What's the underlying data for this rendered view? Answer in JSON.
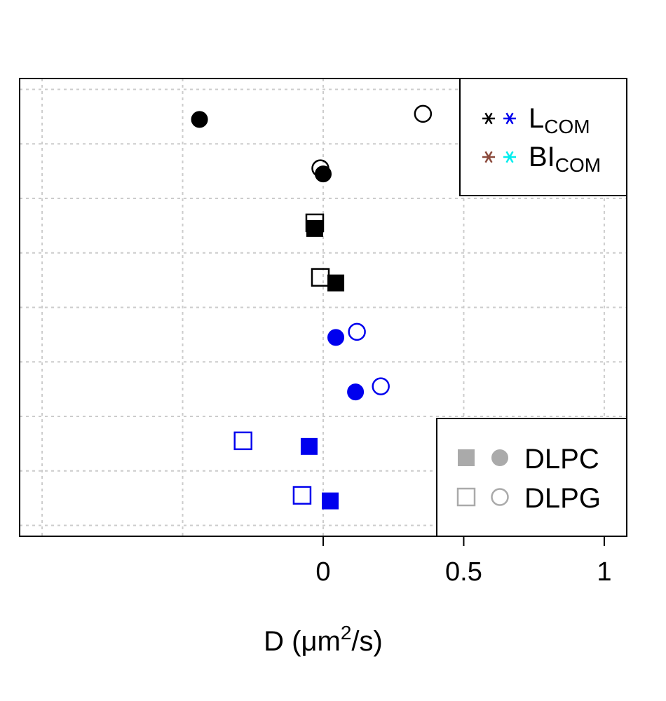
{
  "chart_data": {
    "type": "scatter",
    "title": "",
    "xlabel": {
      "prefix": "D (",
      "unit_base": "μm",
      "sup": "2",
      "suffix": "/s)"
    },
    "ylabel": "",
    "xlim": [
      -1.08,
      1.08
    ],
    "ylim": [
      0.3,
      8.7
    ],
    "x_ticks": [
      {
        "value": 0,
        "label": "0"
      },
      {
        "value": 0.5,
        "label": "0.5"
      },
      {
        "value": 1,
        "label": "1"
      }
    ],
    "grid": true,
    "x_grid_values": [
      -1,
      -0.5,
      0,
      0.5,
      1
    ],
    "y_grid_values": [
      0.5,
      1.5,
      2.5,
      3.5,
      4.5,
      5.5,
      6.5,
      7.5,
      8.5
    ],
    "colors": {
      "black": "#000000",
      "blue": "#0000ee",
      "brown": "#8b4a3c",
      "cyan": "#00eeee",
      "gray": "#aaaaaa"
    },
    "points": [
      {
        "row": 8,
        "x": -0.44,
        "shape": "circle",
        "filled": true,
        "color": "black"
      },
      {
        "row": 8,
        "x": 0.355,
        "shape": "circle",
        "filled": false,
        "color": "black"
      },
      {
        "row": 7,
        "x": -0.01,
        "shape": "circle",
        "filled": false,
        "color": "black"
      },
      {
        "row": 7,
        "x": 0.0,
        "shape": "circle",
        "filled": true,
        "color": "black"
      },
      {
        "row": 6,
        "x": -0.03,
        "shape": "square",
        "filled": false,
        "color": "black"
      },
      {
        "row": 6,
        "x": -0.03,
        "shape": "square",
        "filled": true,
        "color": "black"
      },
      {
        "row": 5,
        "x": -0.01,
        "shape": "square",
        "filled": false,
        "color": "black"
      },
      {
        "row": 5,
        "x": 0.045,
        "shape": "square",
        "filled": true,
        "color": "black"
      },
      {
        "row": 4,
        "x": 0.045,
        "shape": "circle",
        "filled": true,
        "color": "blue"
      },
      {
        "row": 4,
        "x": 0.12,
        "shape": "circle",
        "filled": false,
        "color": "blue"
      },
      {
        "row": 3,
        "x": 0.115,
        "shape": "circle",
        "filled": true,
        "color": "blue"
      },
      {
        "row": 3,
        "x": 0.205,
        "shape": "circle",
        "filled": false,
        "color": "blue"
      },
      {
        "row": 2,
        "x": -0.285,
        "shape": "square",
        "filled": false,
        "color": "blue"
      },
      {
        "row": 2,
        "x": -0.05,
        "shape": "square",
        "filled": true,
        "color": "blue"
      },
      {
        "row": 1,
        "x": -0.075,
        "shape": "square",
        "filled": false,
        "color": "blue"
      },
      {
        "row": 1,
        "x": 0.025,
        "shape": "square",
        "filled": true,
        "color": "blue"
      }
    ],
    "legend_top": {
      "position": "top-right",
      "entries": [
        {
          "glyph_colors": [
            "black",
            "blue"
          ],
          "label_base": "L",
          "label_sub": "COM"
        },
        {
          "glyph_colors": [
            "brown",
            "cyan"
          ],
          "label_base": "BI",
          "label_sub": "COM"
        }
      ]
    },
    "legend_bottom": {
      "position": "bottom-right",
      "entries": [
        {
          "label": "DLPC",
          "filled": true
        },
        {
          "label": "DLPG",
          "filled": false
        }
      ]
    }
  }
}
